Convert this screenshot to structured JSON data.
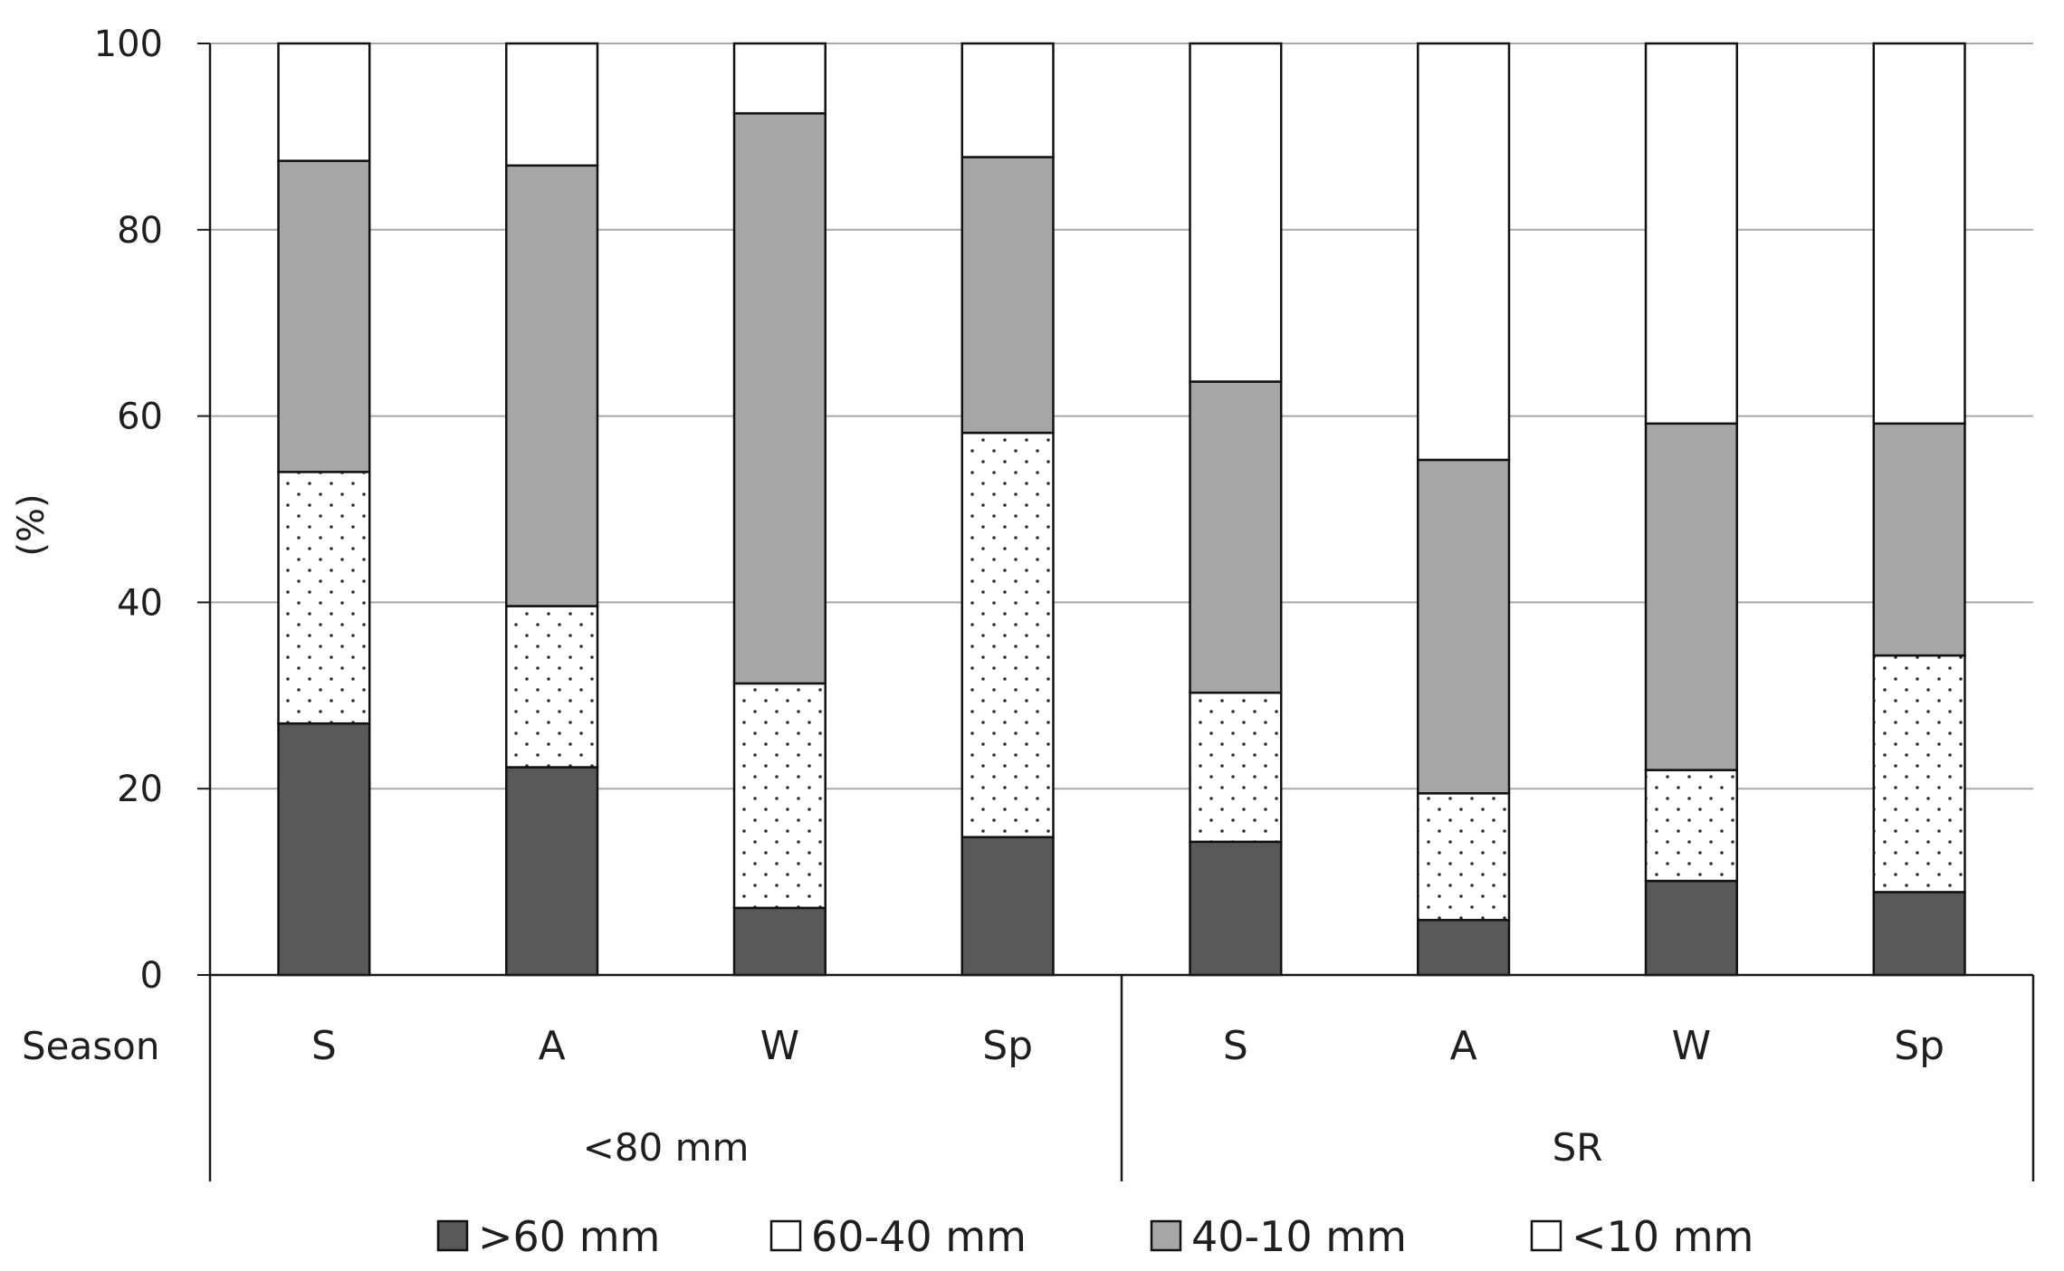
{
  "chart_data": {
    "type": "bar",
    "stacked": true,
    "title": "",
    "xlabel": "",
    "ylabel": "(%)",
    "ylim": [
      0,
      100
    ],
    "yticks": [
      0,
      20,
      40,
      60,
      80,
      100
    ],
    "grid": true,
    "legend_position": "bottom",
    "row_label": "Season",
    "groups": [
      {
        "label": "<80 mm",
        "categories": [
          "S",
          "A",
          "W",
          "Sp"
        ]
      },
      {
        "label": "SR",
        "categories": [
          "S",
          "A",
          "W",
          "Sp"
        ]
      }
    ],
    "series": [
      {
        "name": ">60 mm",
        "color": "#595959",
        "pattern": "solid",
        "values": [
          27,
          22.3,
          7.2,
          14.8,
          14.3,
          5.9,
          10.1,
          8.9
        ]
      },
      {
        "name": "60-40 mm",
        "color": "#ffffff",
        "pattern": "dots",
        "values": [
          27,
          17.3,
          24.1,
          43.4,
          16,
          13.6,
          11.9,
          25.4
        ]
      },
      {
        "name": "40-10 mm",
        "color": "#a6a6a6",
        "pattern": "solid",
        "values": [
          33.4,
          47.3,
          61.2,
          29.6,
          33.4,
          35.8,
          37.2,
          24.9
        ]
      },
      {
        "name": "<10 mm",
        "color": "#ffffff",
        "pattern": "solid",
        "values": [
          12.6,
          13.1,
          7.5,
          12.2,
          36.3,
          44.7,
          40.8,
          40.8
        ]
      }
    ]
  }
}
